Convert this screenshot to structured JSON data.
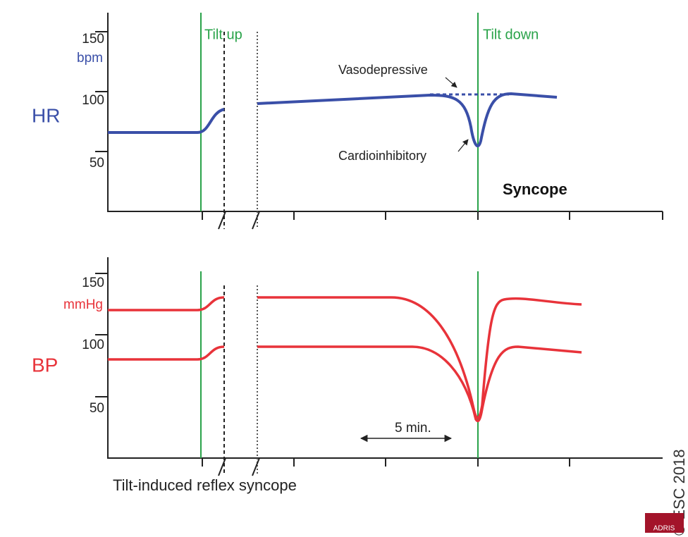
{
  "hr_panel": {
    "label": "HR",
    "unit": "bpm",
    "ticks": [
      "150",
      "100",
      "50"
    ],
    "tilt_up": "Tilt up",
    "tilt_down": "Tilt down",
    "vasodepressive": "Vasodepressive",
    "cardioinhibitory": "Cardioinhibitory",
    "syncope": "Syncope"
  },
  "bp_panel": {
    "label": "BP",
    "unit": "mmHg",
    "ticks": [
      "150",
      "100",
      "50"
    ],
    "duration": "5 min."
  },
  "caption": "Tilt-induced reflex syncope",
  "copyright": "© ESC 2018",
  "logo": "ADRIS"
}
